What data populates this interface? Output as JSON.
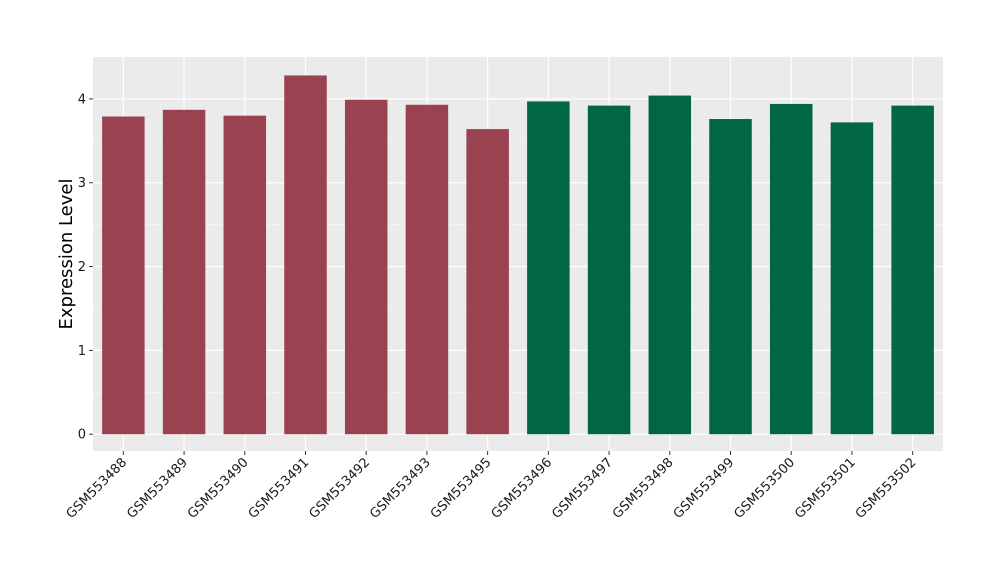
{
  "chart_data": {
    "type": "bar",
    "title": "",
    "xlabel": "",
    "ylabel": "Expression Level",
    "ylim": [
      -0.2,
      4.5
    ],
    "yticks": [
      0,
      1,
      2,
      3,
      4
    ],
    "grid": true,
    "legend": "none",
    "categories": [
      "GSM553488",
      "GSM553489",
      "GSM553490",
      "GSM553491",
      "GSM553492",
      "GSM553493",
      "GSM553495",
      "GSM553496",
      "GSM553497",
      "GSM553498",
      "GSM553499",
      "GSM553500",
      "GSM553501",
      "GSM553502"
    ],
    "values": [
      3.79,
      3.87,
      3.8,
      4.28,
      3.99,
      3.93,
      3.64,
      3.97,
      3.92,
      4.04,
      3.76,
      3.94,
      3.72,
      3.92
    ],
    "groups": [
      0,
      0,
      0,
      0,
      0,
      0,
      0,
      1,
      1,
      1,
      1,
      1,
      1,
      1
    ],
    "colors": {
      "group_0": "#9a4350",
      "group_1": "#006645",
      "panel": "#ebebeb",
      "grid_major": "#ffffff",
      "grid_minor": "#f5f5f5",
      "axis_ticks": "#333333"
    }
  }
}
